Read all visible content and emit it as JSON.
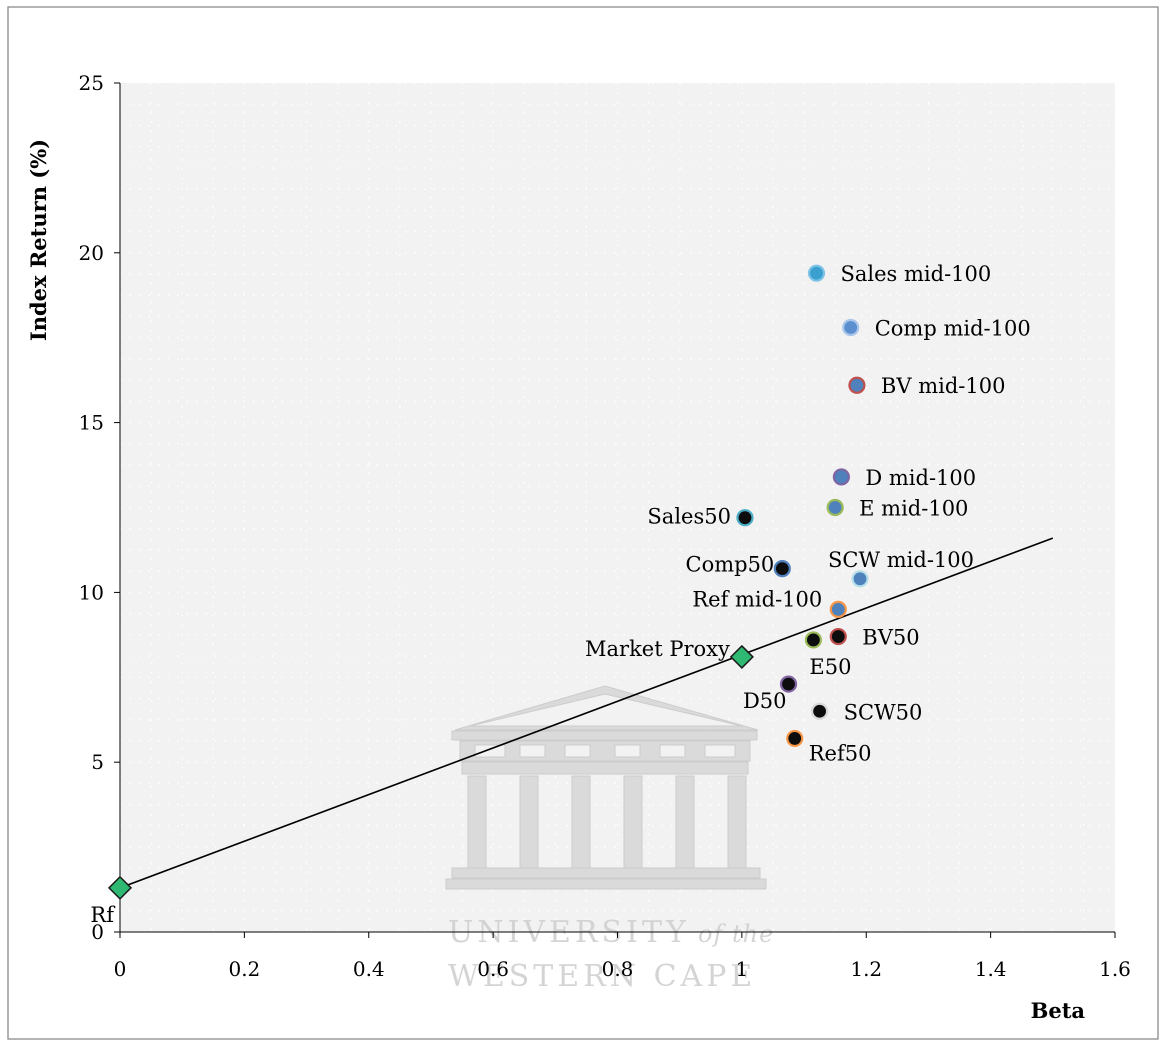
{
  "chart_data": {
    "type": "scatter",
    "xlabel": "Beta",
    "ylabel": "Index Return (%)",
    "xlim": [
      0,
      1.6
    ],
    "ylim": [
      0,
      25
    ],
    "xticks": [
      0,
      0.2,
      0.4,
      0.6,
      0.8,
      1,
      1.2,
      1.4,
      1.6
    ],
    "xtick_labels": [
      "0",
      "0.2",
      "0.4",
      "0.6",
      "0.8",
      "1",
      "1.2",
      "1.4",
      "1.6"
    ],
    "yticks": [
      0,
      5,
      10,
      15,
      20,
      25
    ],
    "ytick_labels": [
      "0",
      "5",
      "10",
      "15",
      "20",
      "25"
    ],
    "grid": "dotted",
    "line": {
      "x": [
        0,
        1.5
      ],
      "y": [
        1.3,
        11.6
      ],
      "color": "#000000"
    },
    "points": [
      {
        "label": "Rf",
        "x": 0.0,
        "y": 1.3,
        "marker": "diamond",
        "fill": "#2eb872",
        "edge": "#1a1a1a",
        "label_pos": "below-left"
      },
      {
        "label": "Market Proxy",
        "x": 1.0,
        "y": 8.1,
        "marker": "diamond",
        "fill": "#2eb872",
        "edge": "#1a1a1a",
        "label_pos": "left"
      },
      {
        "label": "Sales mid-100",
        "x": 1.12,
        "y": 19.4,
        "marker": "circle",
        "fill": "#3aa0d0",
        "edge": "#7ec3e6",
        "label_pos": "right"
      },
      {
        "label": "Comp mid-100",
        "x": 1.175,
        "y": 17.8,
        "marker": "circle",
        "fill": "#5b8fd0",
        "edge": "#a9c6ea",
        "label_pos": "right"
      },
      {
        "label": "BV mid-100",
        "x": 1.185,
        "y": 16.1,
        "marker": "circle",
        "fill": "#4f81bd",
        "edge": "#c0504d",
        "label_pos": "right"
      },
      {
        "label": "D mid-100",
        "x": 1.16,
        "y": 13.4,
        "marker": "circle",
        "fill": "#4f81bd",
        "edge": "#8064a2",
        "label_pos": "right"
      },
      {
        "label": "E mid-100",
        "x": 1.15,
        "y": 12.5,
        "marker": "circle",
        "fill": "#4f81bd",
        "edge": "#9bbb59",
        "label_pos": "right"
      },
      {
        "label": "SCW mid-100",
        "x": 1.19,
        "y": 10.4,
        "marker": "circle",
        "fill": "#4f81bd",
        "edge": "#b7dee8",
        "label_pos": "above"
      },
      {
        "label": "Ref mid-100",
        "x": 1.155,
        "y": 9.5,
        "marker": "circle",
        "fill": "#4f81bd",
        "edge": "#f79646",
        "label_pos": "left"
      },
      {
        "label": "Sales50",
        "x": 1.005,
        "y": 12.2,
        "marker": "circle",
        "fill": "#0d0d0d",
        "edge": "#4bacc6",
        "label_pos": "left"
      },
      {
        "label": "Comp50",
        "x": 1.065,
        "y": 10.7,
        "marker": "circle",
        "fill": "#0d0d0d",
        "edge": "#4f81bd",
        "label_pos": "left"
      },
      {
        "label": "BV50",
        "x": 1.155,
        "y": 8.7,
        "marker": "circle",
        "fill": "#0d0d0d",
        "edge": "#c0504d",
        "label_pos": "right"
      },
      {
        "label": "E50",
        "x": 1.115,
        "y": 8.6,
        "marker": "circle",
        "fill": "#0d0d0d",
        "edge": "#9bbb59",
        "label_pos": "below-left"
      },
      {
        "label": "D50",
        "x": 1.075,
        "y": 7.3,
        "marker": "circle",
        "fill": "#0d0d0d",
        "edge": "#8064a2",
        "label_pos": "below-left"
      },
      {
        "label": "SCW50",
        "x": 1.125,
        "y": 6.5,
        "marker": "circle",
        "fill": "#0d0d0d",
        "edge": "#d9d9d9",
        "label_pos": "right"
      },
      {
        "label": "Ref50",
        "x": 1.085,
        "y": 5.7,
        "marker": "circle",
        "fill": "#0d0d0d",
        "edge": "#f79646",
        "label_pos": "below-right"
      }
    ]
  },
  "watermark": {
    "line1": "UNIVERSITY",
    "line1_suffix": "of the",
    "line2": "WESTERN CAPE",
    "color": "#d0d0d0"
  }
}
